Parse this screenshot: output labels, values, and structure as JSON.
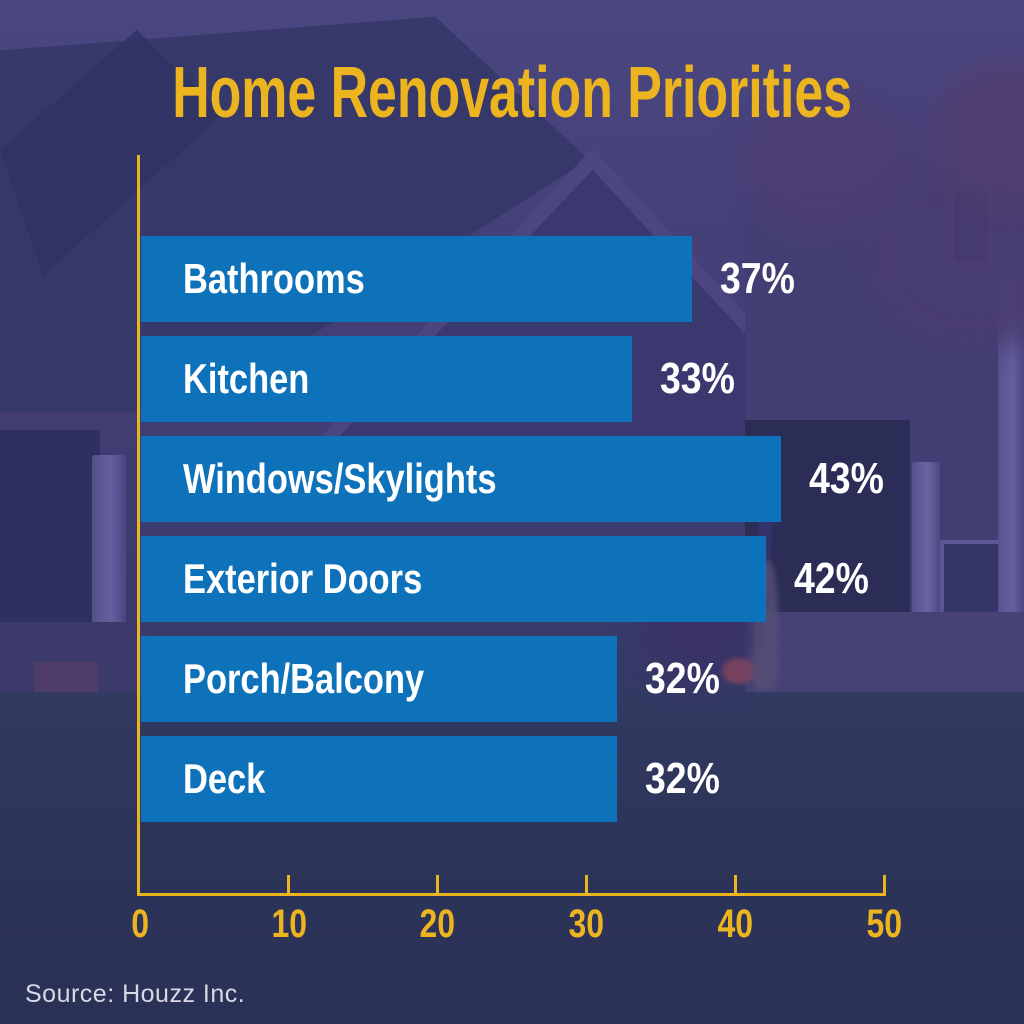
{
  "title": "Home Renovation Priorities",
  "source_label": "Source: Houzz Inc.",
  "colors": {
    "accent_gold": "#ECB41E",
    "bar_blue": "#0E72BA",
    "value_text_white": "#FFFFFF",
    "overlay_purple": "#3D3A6C",
    "source_gray": "#D9D9E6"
  },
  "chart_data": {
    "type": "bar",
    "orientation": "horizontal",
    "title": "Home Renovation Priorities",
    "categories": [
      "Bathrooms",
      "Kitchen",
      "Windows/Skylights",
      "Exterior Doors",
      "Porch/Balcony",
      "Deck"
    ],
    "values": [
      37,
      33,
      43,
      42,
      32,
      32
    ],
    "value_labels": [
      "37%",
      "33%",
      "43%",
      "42%",
      "32%",
      "32%"
    ],
    "xlabel": "",
    "ylabel": "",
    "xlim": [
      0,
      50
    ],
    "x_ticks": [
      0,
      10,
      20,
      30,
      40,
      50
    ],
    "grid": false,
    "legend": false,
    "bar_labels_inside": true,
    "value_labels_outside": true,
    "source": "Source: Houzz Inc."
  }
}
